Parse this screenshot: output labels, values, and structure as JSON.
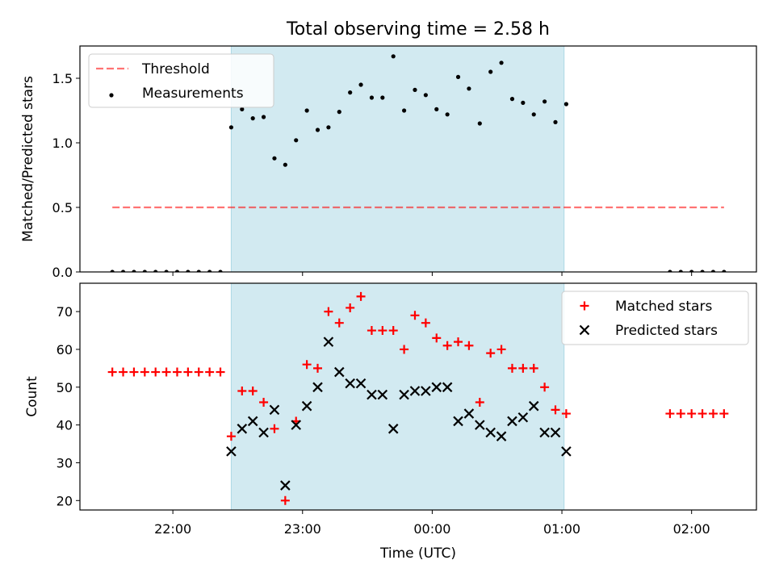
{
  "chart_data": {
    "title": "Total observing time = 2.58 h",
    "xlabel": "Time (UTC)",
    "x_unit": "minutes relative to 00:00 UTC",
    "xlim": [
      -163,
      150
    ],
    "x_ticks": [
      {
        "value": -120,
        "label": "22:00"
      },
      {
        "value": -60,
        "label": "23:00"
      },
      {
        "value": 0,
        "label": "00:00"
      },
      {
        "value": 60,
        "label": "01:00"
      },
      {
        "value": 120,
        "label": "02:00"
      }
    ],
    "shaded_interval": [
      -93,
      61
    ],
    "colors": {
      "shade": "#add8e6",
      "threshold": "#ff0000",
      "matched": "#ff0000",
      "predicted": "#000000",
      "measurements": "#000000"
    },
    "panels": [
      {
        "id": "ratio",
        "type": "scatter",
        "ylabel": "Matched/Predicted stars",
        "ylim": [
          0,
          1.75
        ],
        "y_ticks": [
          0.0,
          0.5,
          1.0,
          1.5
        ],
        "y_tick_labels": [
          "0.0",
          "0.5",
          "1.0",
          "1.5"
        ],
        "legend": {
          "position": "upper-left",
          "entries": [
            "Threshold",
            "Measurements"
          ]
        },
        "threshold": {
          "name": "Threshold",
          "value": 0.5,
          "x_range": [
            -148,
            135
          ],
          "style": "dashed"
        },
        "series": [
          {
            "name": "Measurements",
            "marker": "dot",
            "points": [
              [
                -148,
                0
              ],
              [
                -143,
                0
              ],
              [
                -138,
                0
              ],
              [
                -133,
                0
              ],
              [
                -128,
                0
              ],
              [
                -123,
                0
              ],
              [
                -118,
                0
              ],
              [
                -113,
                0
              ],
              [
                -108,
                0
              ],
              [
                -103,
                0
              ],
              [
                -98,
                0
              ],
              [
                -93,
                1.12
              ],
              [
                -88,
                1.26
              ],
              [
                -83,
                1.19
              ],
              [
                -78,
                1.2
              ],
              [
                -73,
                0.88
              ],
              [
                -68,
                0.83
              ],
              [
                -63,
                1.02
              ],
              [
                -58,
                1.25
              ],
              [
                -53,
                1.1
              ],
              [
                -48,
                1.12
              ],
              [
                -43,
                1.24
              ],
              [
                -38,
                1.39
              ],
              [
                -33,
                1.45
              ],
              [
                -28,
                1.35
              ],
              [
                -23,
                1.35
              ],
              [
                -18,
                1.67
              ],
              [
                -13,
                1.25
              ],
              [
                -8,
                1.41
              ],
              [
                -3,
                1.37
              ],
              [
                2,
                1.26
              ],
              [
                7,
                1.22
              ],
              [
                12,
                1.51
              ],
              [
                17,
                1.42
              ],
              [
                22,
                1.15
              ],
              [
                27,
                1.55
              ],
              [
                32,
                1.62
              ],
              [
                37,
                1.34
              ],
              [
                42,
                1.31
              ],
              [
                47,
                1.22
              ],
              [
                52,
                1.32
              ],
              [
                57,
                1.16
              ],
              [
                62,
                1.3
              ],
              [
                110,
                0
              ],
              [
                115,
                0
              ],
              [
                120,
                0
              ],
              [
                125,
                0
              ],
              [
                130,
                0
              ],
              [
                135,
                0
              ]
            ]
          }
        ]
      },
      {
        "id": "counts",
        "type": "scatter",
        "ylabel": "Count",
        "ylim": [
          17.5,
          77.5
        ],
        "y_ticks": [
          20,
          30,
          40,
          50,
          60,
          70
        ],
        "y_tick_labels": [
          "20",
          "30",
          "40",
          "50",
          "60",
          "70"
        ],
        "legend": {
          "position": "upper-right",
          "entries": [
            "Matched stars",
            "Predicted stars"
          ]
        },
        "series": [
          {
            "name": "Matched stars",
            "marker": "plus",
            "points": [
              [
                -148,
                54
              ],
              [
                -143,
                54
              ],
              [
                -138,
                54
              ],
              [
                -133,
                54
              ],
              [
                -128,
                54
              ],
              [
                -123,
                54
              ],
              [
                -118,
                54
              ],
              [
                -113,
                54
              ],
              [
                -108,
                54
              ],
              [
                -103,
                54
              ],
              [
                -98,
                54
              ],
              [
                -93,
                37
              ],
              [
                -88,
                49
              ],
              [
                -83,
                49
              ],
              [
                -78,
                46
              ],
              [
                -73,
                39
              ],
              [
                -68,
                20
              ],
              [
                -63,
                41
              ],
              [
                -58,
                56
              ],
              [
                -53,
                55
              ],
              [
                -48,
                70
              ],
              [
                -43,
                67
              ],
              [
                -38,
                71
              ],
              [
                -33,
                74
              ],
              [
                -28,
                65
              ],
              [
                -23,
                65
              ],
              [
                -18,
                65
              ],
              [
                -13,
                60
              ],
              [
                -8,
                69
              ],
              [
                -3,
                67
              ],
              [
                2,
                63
              ],
              [
                7,
                61
              ],
              [
                12,
                62
              ],
              [
                17,
                61
              ],
              [
                22,
                46
              ],
              [
                27,
                59
              ],
              [
                32,
                60
              ],
              [
                37,
                55
              ],
              [
                42,
                55
              ],
              [
                47,
                55
              ],
              [
                52,
                50
              ],
              [
                57,
                44
              ],
              [
                62,
                43
              ],
              [
                110,
                43
              ],
              [
                115,
                43
              ],
              [
                120,
                43
              ],
              [
                125,
                43
              ],
              [
                130,
                43
              ],
              [
                135,
                43
              ]
            ]
          },
          {
            "name": "Predicted stars",
            "marker": "x",
            "points": [
              [
                -93,
                33
              ],
              [
                -88,
                39
              ],
              [
                -83,
                41
              ],
              [
                -78,
                38
              ],
              [
                -73,
                44
              ],
              [
                -68,
                24
              ],
              [
                -63,
                40
              ],
              [
                -58,
                45
              ],
              [
                -53,
                50
              ],
              [
                -48,
                62
              ],
              [
                -43,
                54
              ],
              [
                -38,
                51
              ],
              [
                -33,
                51
              ],
              [
                -28,
                48
              ],
              [
                -23,
                48
              ],
              [
                -18,
                39
              ],
              [
                -13,
                48
              ],
              [
                -8,
                49
              ],
              [
                -3,
                49
              ],
              [
                2,
                50
              ],
              [
                7,
                50
              ],
              [
                12,
                41
              ],
              [
                17,
                43
              ],
              [
                22,
                40
              ],
              [
                27,
                38
              ],
              [
                32,
                37
              ],
              [
                37,
                41
              ],
              [
                42,
                42
              ],
              [
                47,
                45
              ],
              [
                52,
                38
              ],
              [
                57,
                38
              ],
              [
                62,
                33
              ]
            ]
          }
        ]
      }
    ]
  }
}
